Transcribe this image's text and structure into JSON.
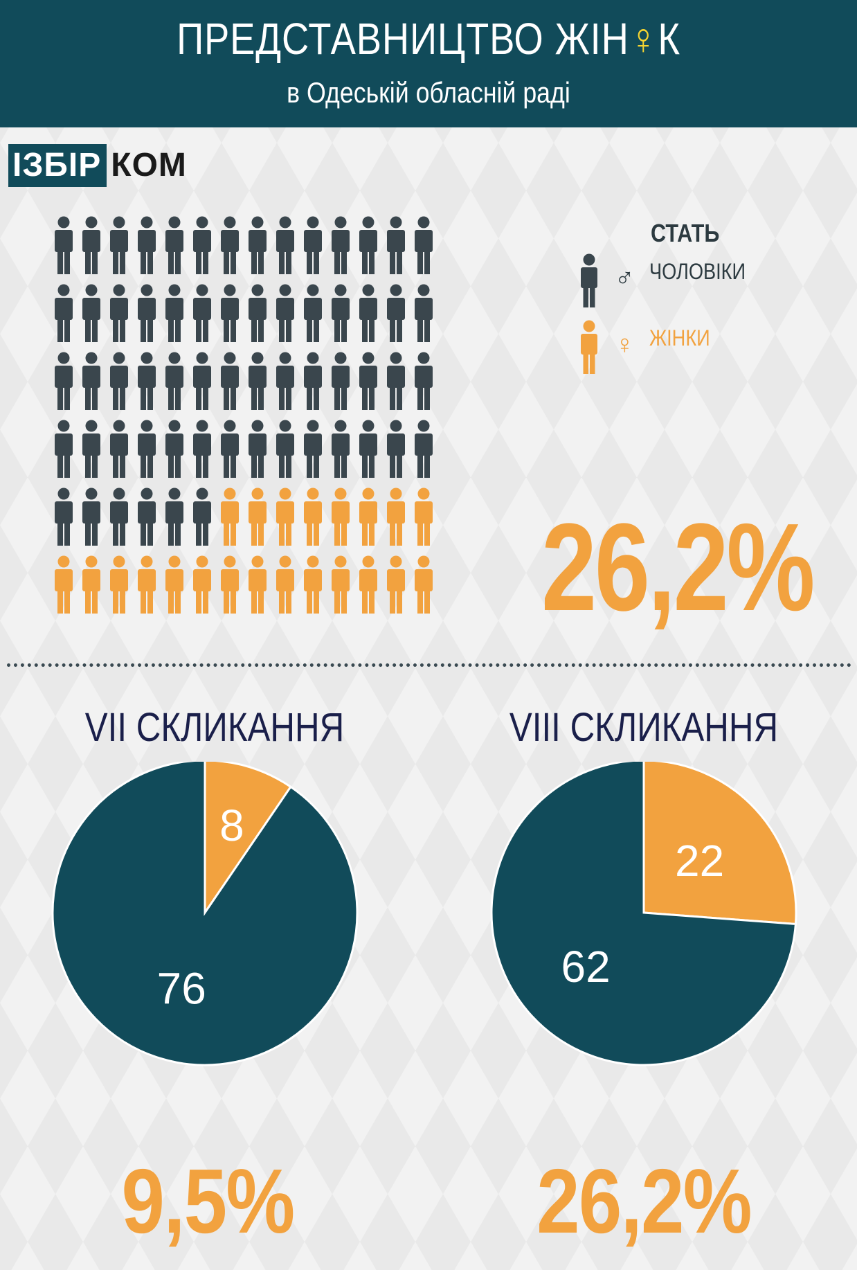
{
  "header": {
    "title_before": "ПРЕДСТАВНИЦТВО ЖІН",
    "title_mark": "♀",
    "title_after": "К",
    "subtitle": "в Одеській обласній раді"
  },
  "logo": {
    "part_a": "ІЗБІР",
    "part_b": "КОМ"
  },
  "legend": {
    "title": "СТАТЬ",
    "men": {
      "symbol": "♂",
      "label": "ЧОЛОВІКИ"
    },
    "women": {
      "symbol": "♀",
      "label": "ЖІНКИ"
    }
  },
  "colors": {
    "men": "#3a464d",
    "women": "#f2a23f",
    "pie_men": "#114b5a",
    "pie_women": "#f2a23f",
    "header": "#114b5a"
  },
  "summary": {
    "current_percent": "26,2%"
  },
  "chart_data": [
    {
      "type": "table",
      "title": "",
      "rows": 6,
      "columns": 14,
      "men": 62,
      "women": 22,
      "total": 84
    },
    {
      "type": "pie",
      "title": "VII СКЛИКАННЯ",
      "categories": [
        "ЖІНКИ",
        "ЧОЛОВІКИ"
      ],
      "values": [
        8,
        76
      ],
      "labels": [
        "8",
        "76"
      ],
      "percent_label": "9,5%"
    },
    {
      "type": "pie",
      "title": "VIII СКЛИКАННЯ",
      "categories": [
        "ЖІНКИ",
        "ЧОЛОВІКИ"
      ],
      "values": [
        22,
        62
      ],
      "labels": [
        "22",
        "62"
      ],
      "percent_label": "26,2%"
    }
  ]
}
